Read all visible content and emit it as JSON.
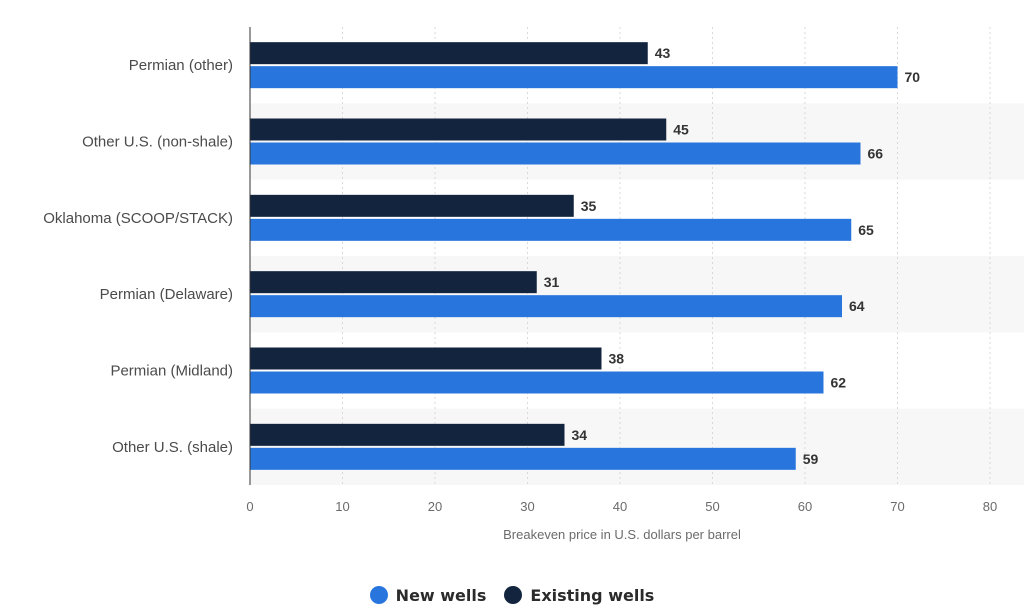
{
  "chart_data": {
    "type": "bar",
    "orientation": "horizontal",
    "categories": [
      "Permian (other)",
      "Other U.S. (non-shale)",
      "Oklahoma (SCOOP/STACK)",
      "Permian (Delaware)",
      "Permian (Midland)",
      "Other U.S. (shale)"
    ],
    "series": [
      {
        "name": "Existing wells",
        "color": "#13253e",
        "values": [
          43,
          45,
          35,
          31,
          38,
          34
        ]
      },
      {
        "name": "New wells",
        "color": "#2876dd",
        "values": [
          70,
          66,
          65,
          64,
          62,
          59
        ]
      }
    ],
    "xlabel": "Breakeven price in U.S. dollars per barrel",
    "xlim": [
      0,
      80
    ],
    "xticks": [
      "0",
      "10",
      "20",
      "30",
      "40",
      "50",
      "60",
      "70",
      "80"
    ],
    "grid": "vertical dashed",
    "legend_position": "bottom-center",
    "legend": [
      {
        "label": "New wells",
        "color": "#2876dd"
      },
      {
        "label": "Existing wells",
        "color": "#13253e"
      }
    ]
  }
}
